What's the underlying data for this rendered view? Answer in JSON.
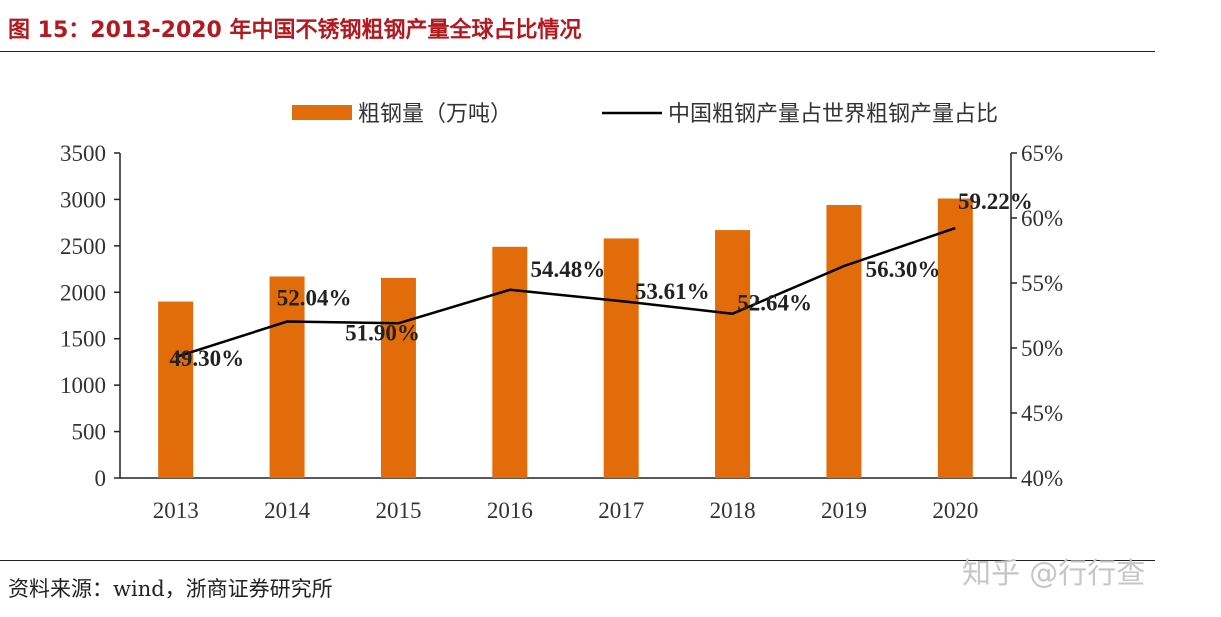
{
  "figure": {
    "title": "图 15：2013-2020 年中国不锈钢粗钢产量全球占比情况",
    "source": "资料来源：wind，浙商证券研究所",
    "watermark": "知乎 @行行查"
  },
  "chart_data": {
    "type": "bar",
    "categories": [
      "2013",
      "2014",
      "2015",
      "2016",
      "2017",
      "2018",
      "2019",
      "2020"
    ],
    "series": [
      {
        "name": "粗钢量（万吨）",
        "type": "bar",
        "axis": "left",
        "color": "#e36c0a",
        "values": [
          1900,
          2170,
          2155,
          2490,
          2580,
          2670,
          2940,
          3010
        ]
      },
      {
        "name": "中国粗钢产量占世界粗钢产量占比",
        "type": "line",
        "axis": "right",
        "color": "#000000",
        "values": [
          49.3,
          52.04,
          51.9,
          54.48,
          53.61,
          52.64,
          56.3,
          59.22
        ],
        "labels": [
          "49.30%",
          "52.04%",
          "51.90%",
          "54.48%",
          "53.61%",
          "52.64%",
          "56.30%",
          "59.22%"
        ]
      }
    ],
    "y_left": {
      "min": 0,
      "max": 3500,
      "ticks": [
        "0",
        "500",
        "1000",
        "1500",
        "2000",
        "2500",
        "3000",
        "3500"
      ]
    },
    "y_right": {
      "min": 40,
      "max": 65,
      "ticks": [
        "40%",
        "45%",
        "50%",
        "55%",
        "60%",
        "65%"
      ]
    },
    "grid": false,
    "legend_position": "top"
  }
}
